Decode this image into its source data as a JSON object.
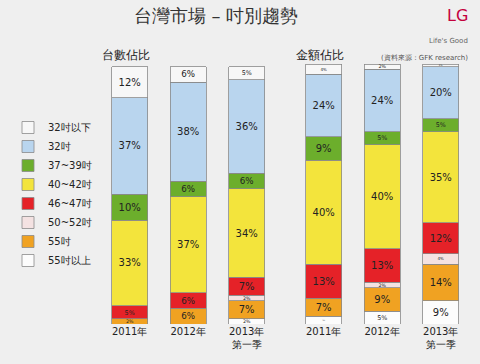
{
  "title": "台灣市場 – 吋別趨勢",
  "logo": "LG",
  "slogan": "Life's Good",
  "source": "(資料來源：GFK research)",
  "chart_data": [
    {
      "type": "bar",
      "title": "台數佔比",
      "stacked": true,
      "data_labels": true,
      "grid": false,
      "tick_labels": "x",
      "legend": "left",
      "categories": [
        "2011年",
        "2012年",
        "2013年\n第一季"
      ],
      "ylim": [
        0,
        100
      ],
      "yticks": [
        0,
        100
      ],
      "series": [
        {
          "name": "32吋以下",
          "color": "#f7f7f7",
          "values": [
            12,
            6,
            5
          ],
          "value_labels": [
            "12%",
            "6%",
            "5%"
          ]
        },
        {
          "name": "32吋",
          "color": "#b9d5ee",
          "values": [
            37,
            38,
            36
          ],
          "value_labels": [
            "37%",
            "38%",
            "36%"
          ]
        },
        {
          "name": "37~39吋",
          "color": "#6cae2c",
          "values": [
            10,
            6,
            6
          ],
          "value_labels": [
            "10%",
            "6%",
            "6%"
          ]
        },
        {
          "name": "40~42吋",
          "color": "#f3e43c",
          "values": [
            33,
            37,
            34
          ],
          "value_labels": [
            "33%",
            "37%",
            "34%"
          ]
        },
        {
          "name": "46~47吋",
          "color": "#e52228",
          "values": [
            5,
            6,
            7
          ],
          "value_labels": [
            "5%",
            "6%",
            "7%"
          ]
        },
        {
          "name": "50~52吋",
          "color": "#f4e2e2",
          "values": [
            null,
            null,
            2
          ],
          "value_labels": [
            null,
            null,
            "2%"
          ]
        },
        {
          "name": "55吋",
          "color": "#f0a222",
          "values": [
            2,
            6,
            7
          ],
          "value_labels": [
            "2%",
            "6%",
            "7%"
          ]
        },
        {
          "name": "55吋以上",
          "color": "#fcfcfc",
          "values": [
            null,
            null,
            2
          ],
          "value_labels": [
            null,
            null,
            "2%"
          ]
        }
      ]
    },
    {
      "type": "bar",
      "title": "金額佔比",
      "stacked": true,
      "data_labels": true,
      "grid": false,
      "tick_labels": "x",
      "categories": [
        "2011年",
        "2012年",
        "2013年\n第一季"
      ],
      "ylim": [
        0,
        100
      ],
      "yticks": [
        0,
        100
      ],
      "series": [
        {
          "name": "32吋以下",
          "color": "#f7f7f7",
          "values": [
            4,
            2,
            1
          ],
          "value_labels": [
            "4%",
            "2%",
            "1%"
          ]
        },
        {
          "name": "32吋",
          "color": "#b9d5ee",
          "values": [
            24,
            24,
            20
          ],
          "value_labels": [
            "24%",
            "24%",
            "20%"
          ]
        },
        {
          "name": "37~39吋",
          "color": "#6cae2c",
          "values": [
            9,
            5,
            5
          ],
          "value_labels": [
            "9%",
            "5%",
            "5%"
          ]
        },
        {
          "name": "40~42吋",
          "color": "#f3e43c",
          "values": [
            40,
            40,
            35
          ],
          "value_labels": [
            "40%",
            "40%",
            "35%"
          ]
        },
        {
          "name": "46~47吋",
          "color": "#e52228",
          "values": [
            13,
            13,
            12
          ],
          "value_labels": [
            "13%",
            "13%",
            "12%"
          ]
        },
        {
          "name": "50~52吋",
          "color": "#f4e2e2",
          "values": [
            null,
            2,
            4
          ],
          "value_labels": [
            null,
            "2%",
            "4%"
          ]
        },
        {
          "name": "55吋",
          "color": "#f0a222",
          "values": [
            7,
            9,
            14
          ],
          "value_labels": [
            "7%",
            "9%",
            "14%"
          ]
        },
        {
          "name": "55吋以上",
          "color": "#fcfcfc",
          "values": [
            3,
            5,
            9
          ],
          "value_labels": [
            "3%",
            "5%",
            "9%"
          ]
        }
      ]
    }
  ]
}
